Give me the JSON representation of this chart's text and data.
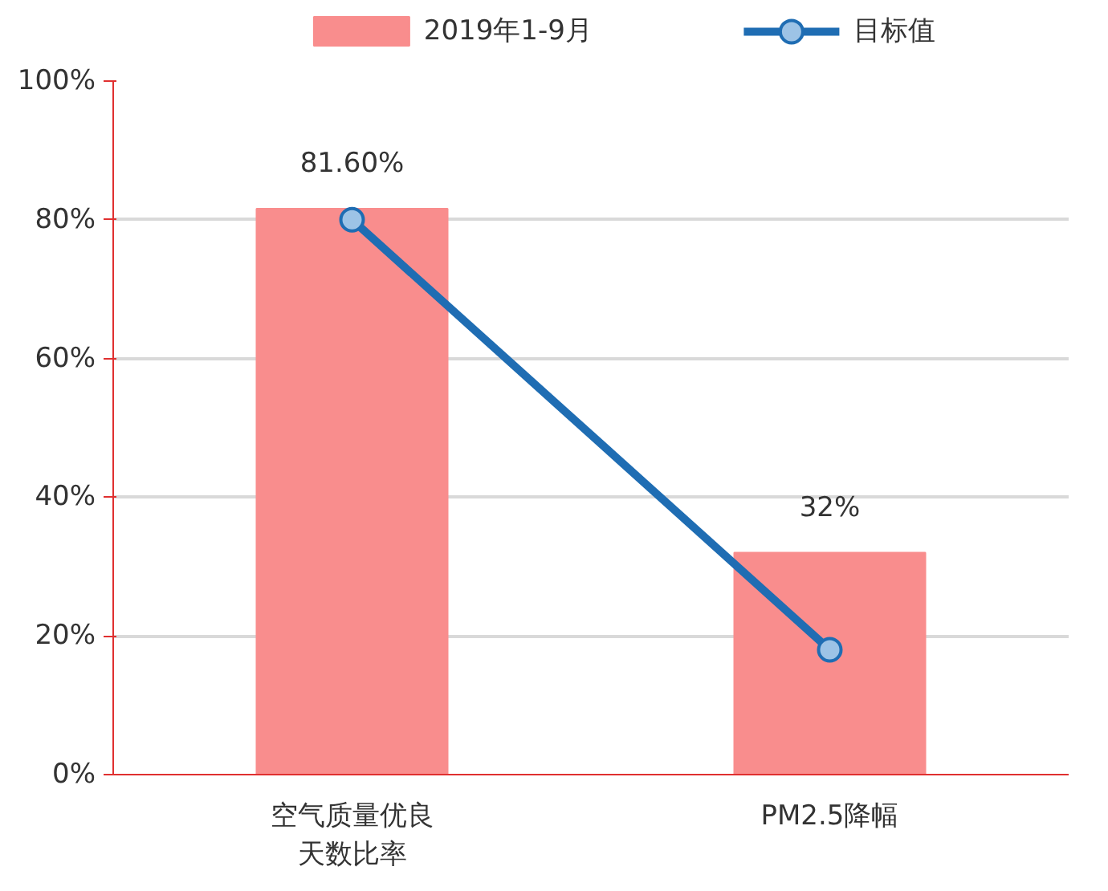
{
  "chart_data": {
    "type": "bar",
    "categories": [
      "空气质量优良天数比率",
      "PM2.5降幅"
    ],
    "series": [
      {
        "name": "2019年1-9月",
        "color": "#f98d8d",
        "values": [
          81.6,
          32
        ],
        "value_labels": [
          "81.60%",
          "32%"
        ]
      },
      {
        "name": "目标值",
        "type": "line",
        "color": "#1f6db3",
        "values": [
          80,
          18
        ],
        "marker": "circle",
        "line_style": "solid"
      }
    ],
    "ylim": [
      0,
      100
    ],
    "yticks": [
      {
        "value": 0,
        "label": "0%"
      },
      {
        "value": 20,
        "label": "20%"
      },
      {
        "value": 40,
        "label": "40%"
      },
      {
        "value": 60,
        "label": "60%"
      },
      {
        "value": 80,
        "label": "80%"
      },
      {
        "value": 100,
        "label": "100%"
      }
    ],
    "grid": "y",
    "legend": "top"
  }
}
